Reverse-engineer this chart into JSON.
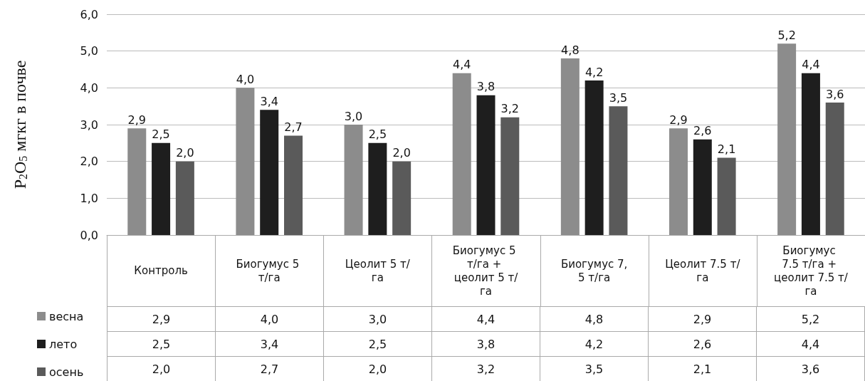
{
  "chart_data": {
    "type": "bar",
    "ylabel": "P$_{2}$O$_{5}$ мгкг в почве",
    "categories": [
      "Контроль",
      "Биогумус 5 т/га",
      "Цеолит 5 т/га",
      "Биогумус 5 т/га + цеолит 5 т/га",
      "Биогумус 7,5 т/га",
      "Цеолит 7.5 т/га",
      "Биогумус 7.5 т/га + цеолит 7.5 т/га"
    ],
    "series": [
      {
        "name": "весна",
        "color": "#8c8c8c",
        "values": [
          2.9,
          4.0,
          3.0,
          4.4,
          4.8,
          2.9,
          5.2
        ],
        "value_labels": [
          "2,9",
          "4,0",
          "3,0",
          "4,4",
          "4,8",
          "2,9",
          "5,2"
        ]
      },
      {
        "name": "лето",
        "color": "#1e1e1e",
        "values": [
          2.5,
          3.4,
          2.5,
          3.8,
          4.2,
          2.6,
          4.4
        ],
        "value_labels": [
          "2,5",
          "3,4",
          "2,5",
          "3,8",
          "4,2",
          "2,6",
          "4,4"
        ]
      },
      {
        "name": "осень",
        "color": "#5a5a5a",
        "values": [
          2.0,
          2.7,
          2.0,
          3.2,
          3.5,
          2.1,
          3.6
        ],
        "value_labels": [
          "2,0",
          "2,7",
          "2,0",
          "3,2",
          "3,5",
          "2,1",
          "3,6"
        ]
      }
    ],
    "ylim": [
      0,
      6
    ],
    "yticks": [
      {
        "value": 0,
        "label": "0,0"
      },
      {
        "value": 1,
        "label": "1,0"
      },
      {
        "value": 2,
        "label": "2,0"
      },
      {
        "value": 3,
        "label": "3,0"
      },
      {
        "value": 4,
        "label": "4,0"
      },
      {
        "value": 5,
        "label": "5,0"
      },
      {
        "value": 6,
        "label": "6,0"
      }
    ],
    "grid": "y",
    "legend": "bottom left"
  }
}
